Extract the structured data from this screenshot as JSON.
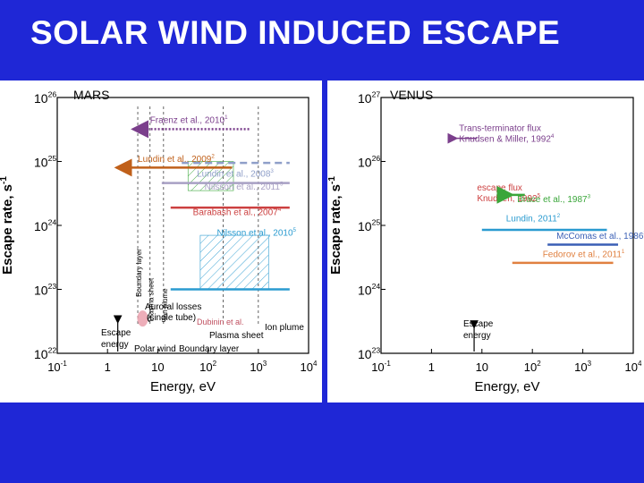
{
  "slide": {
    "title": "SOLAR WIND INDUCED ESCAPE"
  },
  "chart_data": [
    {
      "type": "bar",
      "panel": "mars",
      "title": "MARS",
      "xlabel": "Energy, eV",
      "ylabel": "Escape rate, s",
      "ylabel_exp": "-1",
      "x_scale": "log",
      "y_scale": "log",
      "xlim": [
        0.1,
        10000
      ],
      "ylim": [
        1e+22,
        1e+26
      ],
      "x_ticks": [
        {
          "value": 0.1,
          "base": "10",
          "exp": "-1"
        },
        {
          "value": 1,
          "base": "1",
          "exp": ""
        },
        {
          "value": 10,
          "base": "10",
          "exp": ""
        },
        {
          "value": 100,
          "base": "10",
          "exp": "2"
        },
        {
          "value": 1000,
          "base": "10",
          "exp": "3"
        },
        {
          "value": 10000,
          "base": "10",
          "exp": "4"
        }
      ],
      "y_ticks": [
        {
          "value": 1e+22,
          "base": "10",
          "exp": "22"
        },
        {
          "value": 1e+23,
          "base": "10",
          "exp": "23"
        },
        {
          "value": 1e+24,
          "base": "10",
          "exp": "24"
        },
        {
          "value": 1e+25,
          "base": "10",
          "exp": "25"
        },
        {
          "value": 1e+26,
          "base": "10",
          "exp": "26"
        }
      ],
      "vlines": [
        {
          "x": 4,
          "label": "Boundary layer"
        },
        {
          "x": 7,
          "label": "Plasma sheet"
        },
        {
          "x": 13,
          "label": "Ion plume"
        },
        {
          "x": 200,
          "label": "Plasma sheet"
        },
        {
          "x": 1000,
          "label": "Ion plume"
        }
      ],
      "series": [
        {
          "name": "Fraenz et al., 2010",
          "sup": "1",
          "x0": 3.2,
          "x1": 700,
          "y": 3.2e+25,
          "color": "#7b3f8c",
          "style": "dotted",
          "arrow": "left",
          "label_x": 7,
          "label_y": 4e+25
        },
        {
          "name": "Lundin et al., 2009",
          "sup": "2",
          "x0": 1.5,
          "x1": 300,
          "y": 8e+24,
          "color": "#c0601a",
          "style": "solid",
          "arrow": "left",
          "label_x": 4,
          "label_y": 9.8e+24
        },
        {
          "name": "Lundin et al., 2008",
          "sup": "3",
          "x0": 30,
          "x1": 4200,
          "y": 9.5e+24,
          "color": "#8f9fc9",
          "style": "dashed",
          "label_x": 60,
          "label_y": 5.8e+24
        },
        {
          "name": "Nilsson et al., 2011",
          "sup": "5",
          "x0": 12,
          "x1": 4200,
          "y": 4.6e+24,
          "color": "#a8a0c4",
          "style": "solid",
          "label_x": 85,
          "label_y": 3.6e+24
        },
        {
          "name": "Barabash et al., 2007",
          "sup": "4",
          "x0": 18,
          "x1": 4200,
          "y": 1.9e+24,
          "color": "#cc4040",
          "style": "solid",
          "label_x": 50,
          "label_y": 1.45e+24
        },
        {
          "name": "Nilsson et al., 2010",
          "sup": "5",
          "x0": 18,
          "x1": 4200,
          "y": 1e+23,
          "color": "#2a9bd0",
          "style": "solid",
          "label_x": 150,
          "label_y": 6.9e+23
        }
      ],
      "hatch": [
        {
          "x0": 40,
          "x1": 320,
          "y0": 3.5e+24,
          "y1": 1e+25,
          "color": "#3aa63a"
        },
        {
          "x0": 70,
          "x1": 1600,
          "y0": 1e+23,
          "y1": 7e+23,
          "color": "#2a9bd0"
        }
      ],
      "annotations": {
        "auroral": "Auroral losses",
        "single_tube": "(single tube)",
        "dubinin": "Dubinin et al.",
        "escape": "Escape",
        "energy": "energy",
        "polar_wind": "Polar wind",
        "boundary_layer": "Boundary layer",
        "plasma_sheet": "Plasma sheet",
        "ion_plume": "Ion plume"
      }
    },
    {
      "type": "bar",
      "panel": "venus",
      "title": "VENUS",
      "xlabel": "Energy, eV",
      "ylabel": "Escape rate, s",
      "ylabel_exp": "-1",
      "x_scale": "log",
      "y_scale": "log",
      "xlim": [
        0.1,
        10000
      ],
      "ylim": [
        1e+23,
        1e+27
      ],
      "x_ticks": [
        {
          "value": 0.1,
          "base": "10",
          "exp": "-1"
        },
        {
          "value": 1,
          "base": "1",
          "exp": ""
        },
        {
          "value": 10,
          "base": "10",
          "exp": ""
        },
        {
          "value": 100,
          "base": "10",
          "exp": "2"
        },
        {
          "value": 1000,
          "base": "10",
          "exp": "3"
        },
        {
          "value": 10000,
          "base": "10",
          "exp": "4"
        }
      ],
      "y_ticks": [
        {
          "value": 1e+23,
          "base": "10",
          "exp": "23"
        },
        {
          "value": 1e+24,
          "base": "10",
          "exp": "24"
        },
        {
          "value": 1e+25,
          "base": "10",
          "exp": "25"
        },
        {
          "value": 1e+26,
          "base": "10",
          "exp": "26"
        },
        {
          "value": 1e+27,
          "base": "10",
          "exp": "27"
        }
      ],
      "series": [
        {
          "name": "Brace et al., 1987",
          "sup": "3",
          "x": 40,
          "y": 3e+25,
          "color": "#3aa63a",
          "marker": "arrow-left",
          "label_x": 50,
          "label_y": 2.3e+25
        },
        {
          "name": "Lundin, 2011",
          "sup": "2",
          "x0": 10,
          "x1": 3000,
          "y": 8.5e+24,
          "color": "#2a9bd0",
          "style": "solid",
          "label_x": 30,
          "label_y": 1.15e+25
        },
        {
          "name": "McComas et al., 1986",
          "sup": "3",
          "x0": 200,
          "x1": 5000,
          "y": 5e+24,
          "color": "#3a5fb5",
          "style": "solid",
          "label_x": 300,
          "label_y": 6.2e+24
        },
        {
          "name": "Fedorov et al., 2011",
          "sup": "1",
          "x0": 40,
          "x1": 4000,
          "y": 2.6e+24,
          "color": "#e08040",
          "style": "solid",
          "label_x": 160,
          "label_y": 3.2e+24
        }
      ],
      "notes": [
        {
          "lines": [
            "Trans-terminator flux",
            "Knudsen & Miller, 1992"
          ],
          "sup": "4",
          "x": 3.5,
          "y": 3e+26,
          "color": "#7b3f8c"
        },
        {
          "lines": [
            "escape flux",
            "Knudsen, 1992"
          ],
          "sup": "5",
          "x": 8,
          "y": 3.5e+25,
          "color": "#cc4040"
        }
      ],
      "annotations": {
        "escape": "Escape",
        "energy": "energy"
      }
    }
  ]
}
